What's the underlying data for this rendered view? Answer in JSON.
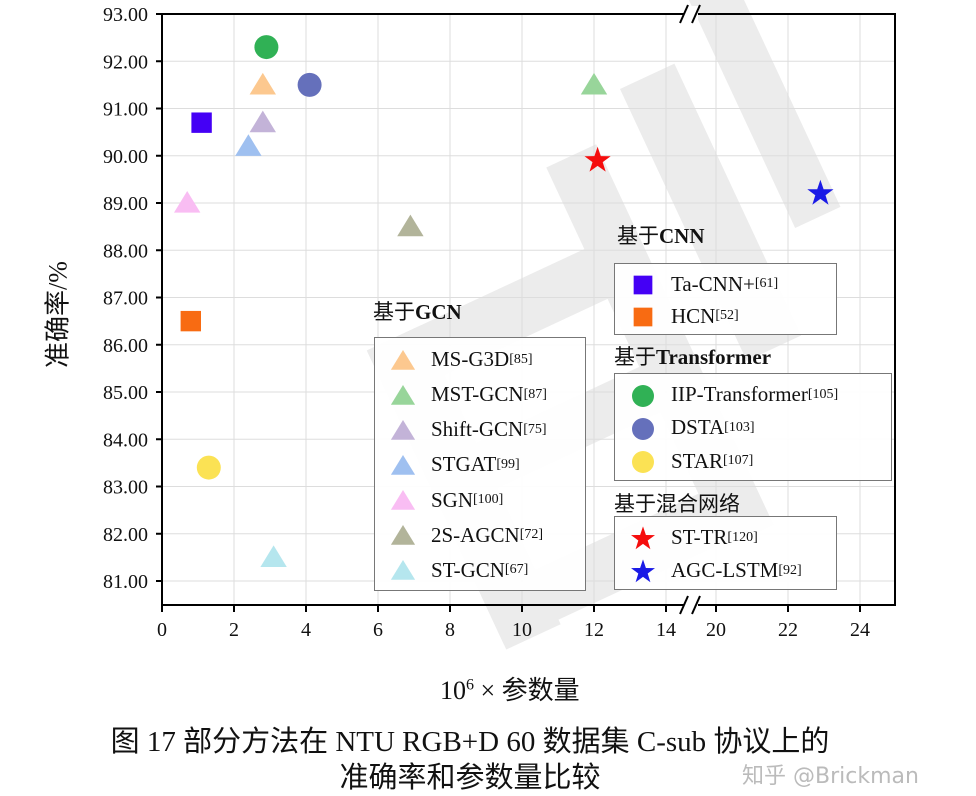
{
  "chart_data": {
    "type": "scatter",
    "xlabel_prefix": "10",
    "xlabel_exp": "6",
    "xlabel_suffix": " × 参数量",
    "ylabel": "准确率/%",
    "xlim_segments": [
      [
        0,
        14.6
      ],
      [
        19.4,
        25
      ]
    ],
    "ylim": [
      80.5,
      93
    ],
    "xticks": [
      0,
      2,
      4,
      6,
      8,
      10,
      12,
      14,
      20,
      22,
      24
    ],
    "yticks": [
      "81.00",
      "82.00",
      "83.00",
      "84.00",
      "85.00",
      "86.00",
      "87.00",
      "88.00",
      "89.00",
      "90.00",
      "91.00",
      "92.00",
      "93.00"
    ],
    "grid": true,
    "axis_break": "between 14 and 20",
    "groups": [
      {
        "title_prefix": "基于",
        "title_bold": "GCN",
        "items": [
          {
            "name": "MS-G3D",
            "ref": "[85]",
            "marker": "triangle",
            "color": "#fcc88f",
            "x": 2.8,
            "y": 91.5
          },
          {
            "name": "MST-GCN",
            "ref": "[87]",
            "marker": "triangle",
            "color": "#98d59a",
            "x": 12.0,
            "y": 91.5
          },
          {
            "name": "Shift-GCN",
            "ref": "[75]",
            "marker": "triangle",
            "color": "#c3b3d8",
            "x": 2.8,
            "y": 90.7
          },
          {
            "name": "STGAT",
            "ref": "[99]",
            "marker": "triangle",
            "color": "#9fc0f0",
            "x": 2.4,
            "y": 90.2
          },
          {
            "name": "SGN",
            "ref": "[100]",
            "marker": "triangle",
            "color": "#f9bdf3",
            "x": 0.7,
            "y": 89.0
          },
          {
            "name": "2S-AGCN",
            "ref": "[72]",
            "marker": "triangle",
            "color": "#b2b49a",
            "x": 6.9,
            "y": 88.5
          },
          {
            "name": "ST-GCN",
            "ref": "[67]",
            "marker": "triangle",
            "color": "#b5e6ee",
            "x": 3.1,
            "y": 81.5
          }
        ]
      },
      {
        "title_prefix": "基于",
        "title_bold": "CNN",
        "items": [
          {
            "name": "Ta-CNN+",
            "ref": "[61]",
            "marker": "square",
            "color": "#4400f5",
            "x": 1.1,
            "y": 90.7
          },
          {
            "name": "HCN",
            "ref": "[52]",
            "marker": "square",
            "color": "#f86b12",
            "x": 0.8,
            "y": 86.5
          }
        ]
      },
      {
        "title_prefix": "基于",
        "title_bold": "Transformer",
        "items": [
          {
            "name": "IIP-Transformer",
            "ref": "[105]",
            "marker": "circle",
            "color": "#30b155",
            "x": 2.9,
            "y": 92.3
          },
          {
            "name": "DSTA",
            "ref": "[103]",
            "marker": "circle",
            "color": "#6570bb",
            "x": 4.1,
            "y": 91.5
          },
          {
            "name": "STAR",
            "ref": "[107]",
            "marker": "circle",
            "color": "#fbe254",
            "x": 1.3,
            "y": 83.4
          }
        ]
      },
      {
        "title_prefix": "基于混合网络",
        "title_bold": "",
        "items": [
          {
            "name": "ST-TR",
            "ref": "[120]",
            "marker": "star",
            "color": "#f50d0d",
            "x": 12.1,
            "y": 89.9
          },
          {
            "name": "AGC-LSTM",
            "ref": "[92]",
            "marker": "star",
            "color": "#1a1ae6",
            "x": 22.9,
            "y": 89.2
          }
        ]
      }
    ]
  },
  "caption": {
    "line1": "图 17 部分方法在 NTU RGB+D 60 数据集 C-sub 协议上的",
    "line2": "准确率和参数量比较"
  },
  "watermark": "知乎 @Brickman"
}
